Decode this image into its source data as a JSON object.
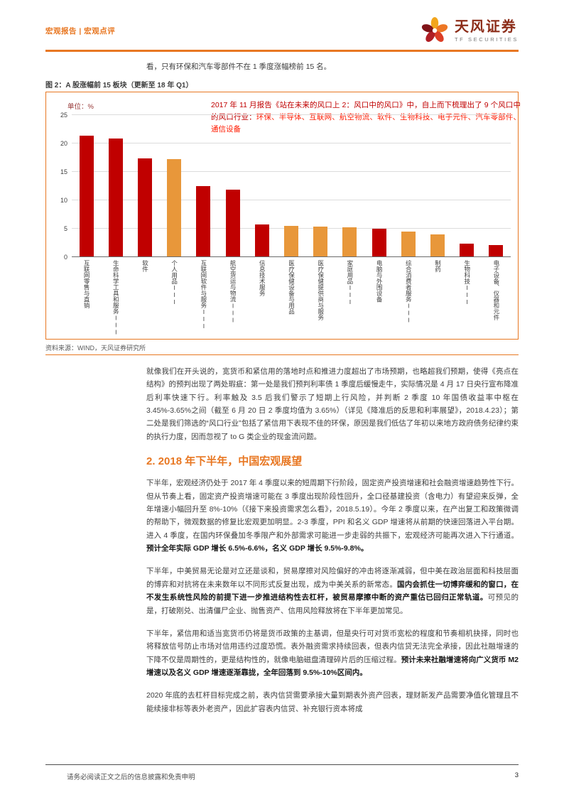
{
  "header": {
    "report_label": "宏观报告 | 宏观点评",
    "brand_name": "天风证券",
    "brand_subtitle": "TF SECURITIES"
  },
  "intro_text": "看，只有环保和汽车零部件不在 1 季度涨幅榜前 15 名。",
  "figure": {
    "caption": "图 2：A 股涨幅前 15 板块（更新至 18 年 Q1）",
    "unit_label": "单位：%",
    "annotation_intro": "2017 年 11 月报告《站在未来的风口上 2：风口中的风口》中，自上而下梳理出了 9 个风口中的风口行业：",
    "annotation_industries": "环保、半导体、互联网、航空物流、软件、生物科技、电子元件、汽车零部件、通信设备",
    "source": "资料来源：WIND，天风证券研究所"
  },
  "chart_data": {
    "type": "bar",
    "title": "A 股涨幅前 15 板块（更新至 18 年 Q1）",
    "ylabel": "单位：%",
    "categories": [
      "互联网零售与直销",
      "生命科学工具和服务III",
      "软件",
      "个人用品III",
      "互联网软件与服务III",
      "航空货运与物流III",
      "信息技术服务",
      "医疗保健设备与用品",
      "医疗保健提供商与服务",
      "家庭用品III",
      "电脑与外围设备",
      "综合消费者服务III",
      "制药",
      "生物科技III",
      "电子设备、仪器和元件"
    ],
    "values": [
      21.3,
      20.8,
      17.2,
      17.1,
      12.4,
      11.7,
      5.6,
      5.4,
      5.2,
      5.1,
      4.9,
      4.4,
      3.9,
      2.2,
      2.0
    ],
    "bar_color_keys": [
      "red",
      "red",
      "red",
      "orange",
      "red",
      "red",
      "red",
      "orange",
      "orange",
      "orange",
      "red",
      "orange",
      "orange",
      "red",
      "red"
    ],
    "colors": {
      "red": "#C00000",
      "orange": "#E8973A"
    },
    "ylim": [
      0,
      25
    ],
    "yticks": [
      0,
      5,
      10,
      15,
      20,
      25
    ],
    "grid": true,
    "legend": false
  },
  "section_heading": "2. 2018 年下半年，中国宏观展望",
  "body": {
    "paragraphs_top": [
      [
        {
          "t": "就像我们在开头说的，宽货币和紧信用的落地时点和推进力度超出了市场预期，也略超我们预期，使得《亮点在结构》的预判出现了两处瑕疵：第一处是我们预判利率债 1 季度后缓慢走牛，实际情况是 4 月 17 日央行宣布降准后利率快速下行。利率触及 3.5 后我们警示了短期上行风险，并判断 2 季度 10 年国债收益率中枢在 3.45%-3.65%之间（截至 6 月 20 日 2 季度均值为 3.65%）（详见《降准后的反思和利率展望》，2018.4.23）；第二处是我们筛选的“风口行业”包括了紧信用下表现不佳的环保，原因是我们低估了年初以来地方政府债务纪律约束的执行力度，因而忽视了 to G 类企业的现金流问题。",
          "b": false
        }
      ]
    ],
    "paragraphs_bottom": [
      [
        {
          "t": "下半年，宏观经济仍处于 2017 年 4 季度以来的短周期下行阶段，固定资产投资增速和社会融资增速趋势性下行。但从节奏上看，固定资产投资增速可能在 3 季度出现阶段性回升，全口径基建投资（含电力）有望迎来反弹，全年增速小幅回升至 8%-10%（《接下来投资需求怎么看》，2018.5.19）。今年 2 季度以来，在产出复工和政策微调的帮助下，微观数据的修复比宏观更加明显。2-3 季度，PPI 和名义 GDP 增速将从前期的快速回落进入平台期。进入 4 季度，在国内环保叠加冬季限产和外部需求可能进一步走弱的共振下，宏观经济可能再次进入下行通道。",
          "b": false
        },
        {
          "t": "预计全年实际 GDP 增长 6.5%-6.6%，名义 GDP 增长 9.5%-9.8%。",
          "b": true
        }
      ],
      [
        {
          "t": "下半年，中美贸易无论是对立还是谈和，贸易摩擦对风险偏好的冲击将逐渐减弱，但中美在政治层面和科技层面的博弈和对抗将在未来数年以不同形式反复出现，成为中美关系的新常态。",
          "b": false
        },
        {
          "t": "国内会抓住一切博弈缓和的窗口，在不发生系统性风险的前提下进一步推进结构性去杠杆，被贸易摩擦中断的资产重估已回归正常轨道。",
          "b": true
        },
        {
          "t": "可预见的是，打破刚兑、出清僵尸企业、抛售资产、信用风险释放将在下半年更加常见。",
          "b": false
        }
      ],
      [
        {
          "t": "下半年，紧信用和适当宽货币仍将是货币政策的主基调，但是央行可对货币宽松的程度和节奏相机抉择，同时也将释放信号防止市场对信用违约过度恐慌。表外融资需求持续回表，但表内信贷无法完全承接，因此社融增速的下降不仅是周期性的，更是结构性的，就像电脑磁盘清理碎片后的压缩过程。",
          "b": false
        },
        {
          "t": "预计未来社融增速将向广义货币 M2 增速以及名义 GDP 增速逐渐靠拢，全年回落到 9.5%-10%区间内。",
          "b": true
        }
      ],
      [
        {
          "t": "2020 年底的去杠杆目标完成之前，表内信贷需要承接大量到期表外资产回表，理财新发产品需要净值化管理且不能续接非标等表外老资产，因此扩容表内信贷、补充银行资本将成",
          "b": false
        }
      ]
    ]
  },
  "footer": {
    "disclaimer": "请务必阅读正文之后的信息披露和免责申明",
    "page_number": "3"
  }
}
